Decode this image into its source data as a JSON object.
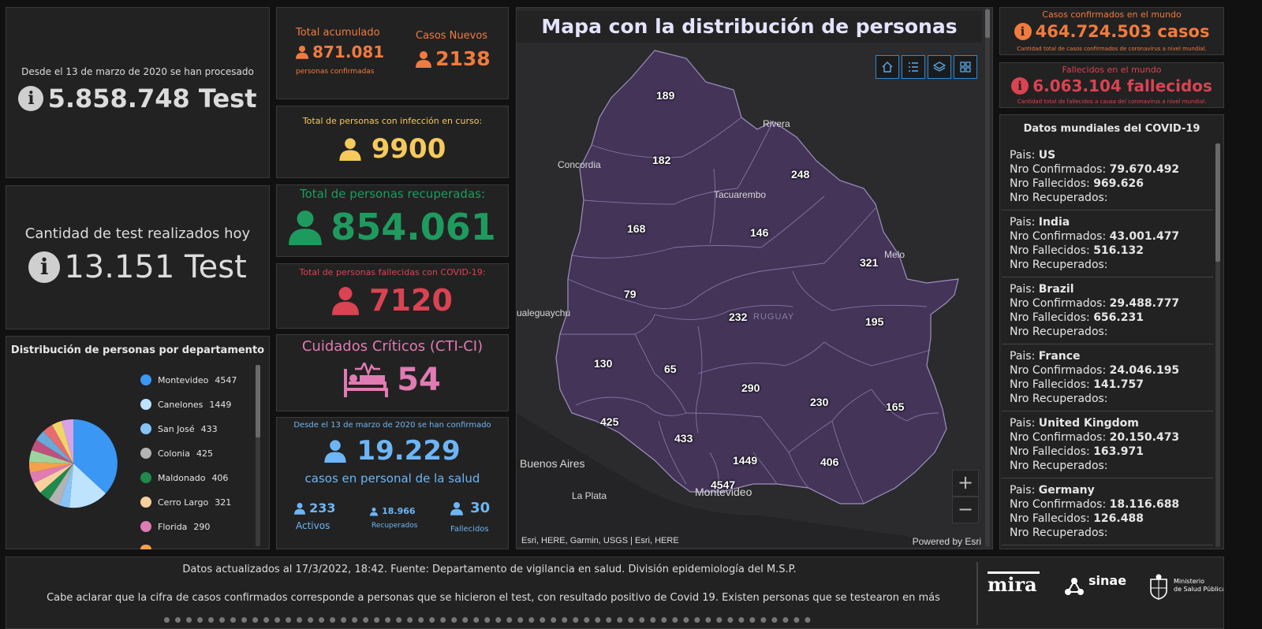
{
  "tests_total": {
    "caption": "Desde el 13 de marzo de 2020 se han procesado",
    "value": "5.858.748 Test"
  },
  "tests_today": {
    "caption": "Cantidad de test realizados hoy",
    "value": "13.151 Test"
  },
  "distribution": {
    "title": "Distribución de personas por departamento",
    "legend": [
      {
        "name": "Montevideo",
        "value": "4547",
        "color": "#3a97f3"
      },
      {
        "name": "Canelones",
        "value": "1449",
        "color": "#bde3ff"
      },
      {
        "name": "San José",
        "value": "433",
        "color": "#87c3f7"
      },
      {
        "name": "Colonia",
        "value": "425",
        "color": "#b3b3b3"
      },
      {
        "name": "Maldonado",
        "value": "406",
        "color": "#1f8a4c"
      },
      {
        "name": "Cerro Largo",
        "value": "321",
        "color": "#f8cf9f"
      },
      {
        "name": "Florida",
        "value": "290",
        "color": "#e07bb3"
      }
    ]
  },
  "accumulated": {
    "label": "Total acumulado",
    "value": "871.081",
    "sublabel": "personas confirmadas",
    "new_label": "Casos Nuevos",
    "new_value": "2138"
  },
  "in_course": {
    "label": "Total de personas con infección en curso:",
    "value": "9900"
  },
  "recovered": {
    "label": "Total de personas recuperadas:",
    "value": "854.061"
  },
  "deceased": {
    "label": "Total de personas fallecidas con COVID-19:",
    "value": "7120"
  },
  "critical": {
    "label": "Cuidados Críticos (CTI-CI)",
    "value": "54"
  },
  "health_staff": {
    "caption": "Desde el 13 de marzo de 2020 se han confirmado",
    "value": "19.229",
    "sublabel": "casos en personal de la salud",
    "active_value": "233",
    "active_label": "Activos",
    "recovered_value": "18.966",
    "recovered_label": "Recuperados",
    "deceased_value": "30",
    "deceased_label": "Fallecidos"
  },
  "map": {
    "title": "Mapa con la distribución de personas",
    "attribution": "Esri, HERE, Garmin, USGS | Esri, HERE",
    "powered": "Powered by Esri",
    "zoom_in": "+",
    "zoom_out": "−",
    "cities": {
      "concordia": "Concordia",
      "rivera": "Rivera",
      "tacuarembo": "Tacuarembo",
      "melo": "Melo",
      "gualeguaychu": "ualeguaychu",
      "buenos_aires": "Buenos Aires",
      "la_plata": "La Plata",
      "montevideo": "Montevideo",
      "uruguay": "RUGUAY"
    },
    "departments": [
      "189",
      "182",
      "248",
      "168",
      "146",
      "321",
      "79",
      "232",
      "195",
      "130",
      "65",
      "290",
      "230",
      "165",
      "425",
      "433",
      "1449",
      "406",
      "4547"
    ]
  },
  "world_cases": {
    "label": "Casos confirmados en el mundo",
    "value": "464.724.503 casos",
    "note": "Cantidad total de casos confirmados de coronavirus a nivel mundial.",
    "color": "#f07b3f"
  },
  "world_deaths": {
    "label": "Fallecidos en el mundo",
    "value": "6.063.104 fallecidos",
    "note": "Cantidad total de fallecidos a causa del coronavirus a nivel mundial.",
    "color": "#d94352"
  },
  "world_data": {
    "title": "Datos mundiales del COVID-19",
    "labels": {
      "country": "Pais: ",
      "confirmed": "Nro Confirmados: ",
      "deaths": "Nro Fallecidos: ",
      "recovered": "Nro Recuperados:"
    },
    "countries": [
      {
        "name": "US",
        "confirmed": "79.670.492",
        "deaths": "969.626"
      },
      {
        "name": "India",
        "confirmed": "43.001.477",
        "deaths": "516.132"
      },
      {
        "name": "Brazil",
        "confirmed": "29.488.777",
        "deaths": "656.231"
      },
      {
        "name": "France",
        "confirmed": "24.046.195",
        "deaths": "141.757"
      },
      {
        "name": "United Kingdom",
        "confirmed": "20.150.473",
        "deaths": "163.971"
      },
      {
        "name": "Germany",
        "confirmed": "18.116.688",
        "deaths": "126.488"
      }
    ]
  },
  "footer": {
    "line1": "Datos actualizados al 17/3/2022, 18:42. Fuente: Departamento de vigilancia en salud. División epidemiología del M.S.P.",
    "line2": "Cabe aclarar que la cifra de casos confirmados corresponde a personas que se hicieron el test, con resultado positivo de Covid 19. Existen personas que se testearon en más",
    "logo_mira": "mira",
    "logo_sinae": "sinae",
    "logo_ministerio_1": "Ministerio",
    "logo_ministerio_2": "de Salud Pública"
  }
}
